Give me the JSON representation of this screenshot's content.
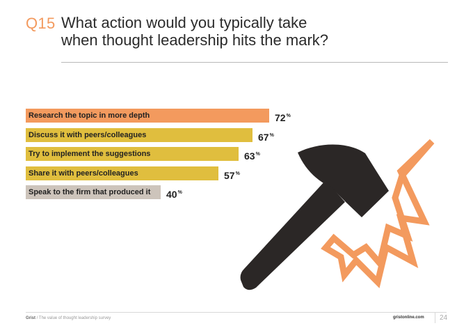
{
  "header": {
    "question_number": "Q15",
    "title_line1": "What action would you typically take",
    "title_line2": "when thought leadership hits the mark?"
  },
  "chart_data": {
    "type": "bar",
    "orientation": "horizontal",
    "categories": [
      "Research the topic in more depth",
      "Discuss it with peers/colleagues",
      "Try to implement the suggestions",
      "Share it with peers/colleagues",
      "Speak to the firm that produced it"
    ],
    "values": [
      72,
      67,
      63,
      57,
      40
    ],
    "value_suffix": "%",
    "bar_colors": [
      "#f39a5e",
      "#e0be3e",
      "#e0be3e",
      "#e0be3e",
      "#cdc4bb"
    ],
    "title": "",
    "xlabel": "",
    "ylabel": "",
    "xlim": [
      0,
      100
    ],
    "grid": false,
    "legend": "none"
  },
  "illustration": {
    "icon": "hammer-strike-icon",
    "hammer_color": "#2b2726",
    "burst_color": "#f39a5e"
  },
  "footer": {
    "brand": "Grist",
    "subtitle": " / The value of thought leadership survey",
    "url": "gristonline.com",
    "page_number": "24"
  }
}
